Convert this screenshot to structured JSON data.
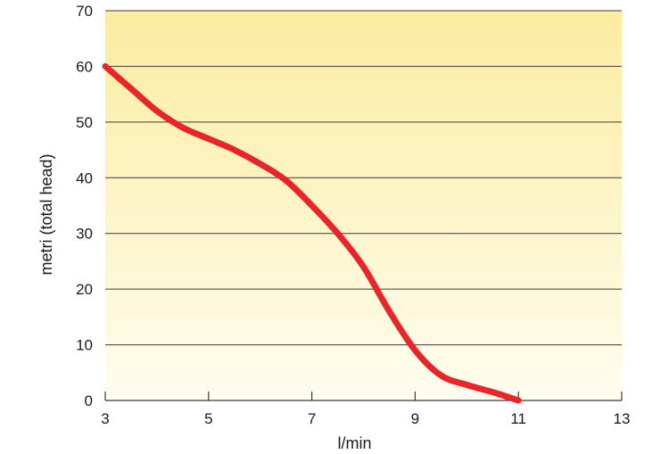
{
  "chart_data": {
    "type": "line",
    "title": "",
    "xlabel": "l/min",
    "ylabel": "metri (total head)",
    "x_ticks": [
      3,
      5,
      7,
      9,
      11,
      13
    ],
    "y_ticks": [
      0,
      10,
      20,
      30,
      40,
      50,
      60,
      70
    ],
    "xlim": [
      3,
      13
    ],
    "ylim": [
      0,
      70
    ],
    "grid": "horizontal",
    "series": [
      {
        "x": [
          3,
          3.5,
          4,
          4.5,
          5,
          5.5,
          6,
          6.5,
          7,
          7.5,
          8,
          8.5,
          9,
          9.5,
          10,
          10.5,
          11
        ],
        "y": [
          60,
          56,
          52,
          49,
          47,
          45,
          42.5,
          39.5,
          35,
          30,
          24,
          16,
          9,
          4.5,
          2.8,
          1.5,
          0
        ]
      }
    ],
    "colors": {
      "line": "#e8262a",
      "background_top": "#fbeca0",
      "background_bottom": "#fffdf0"
    }
  }
}
